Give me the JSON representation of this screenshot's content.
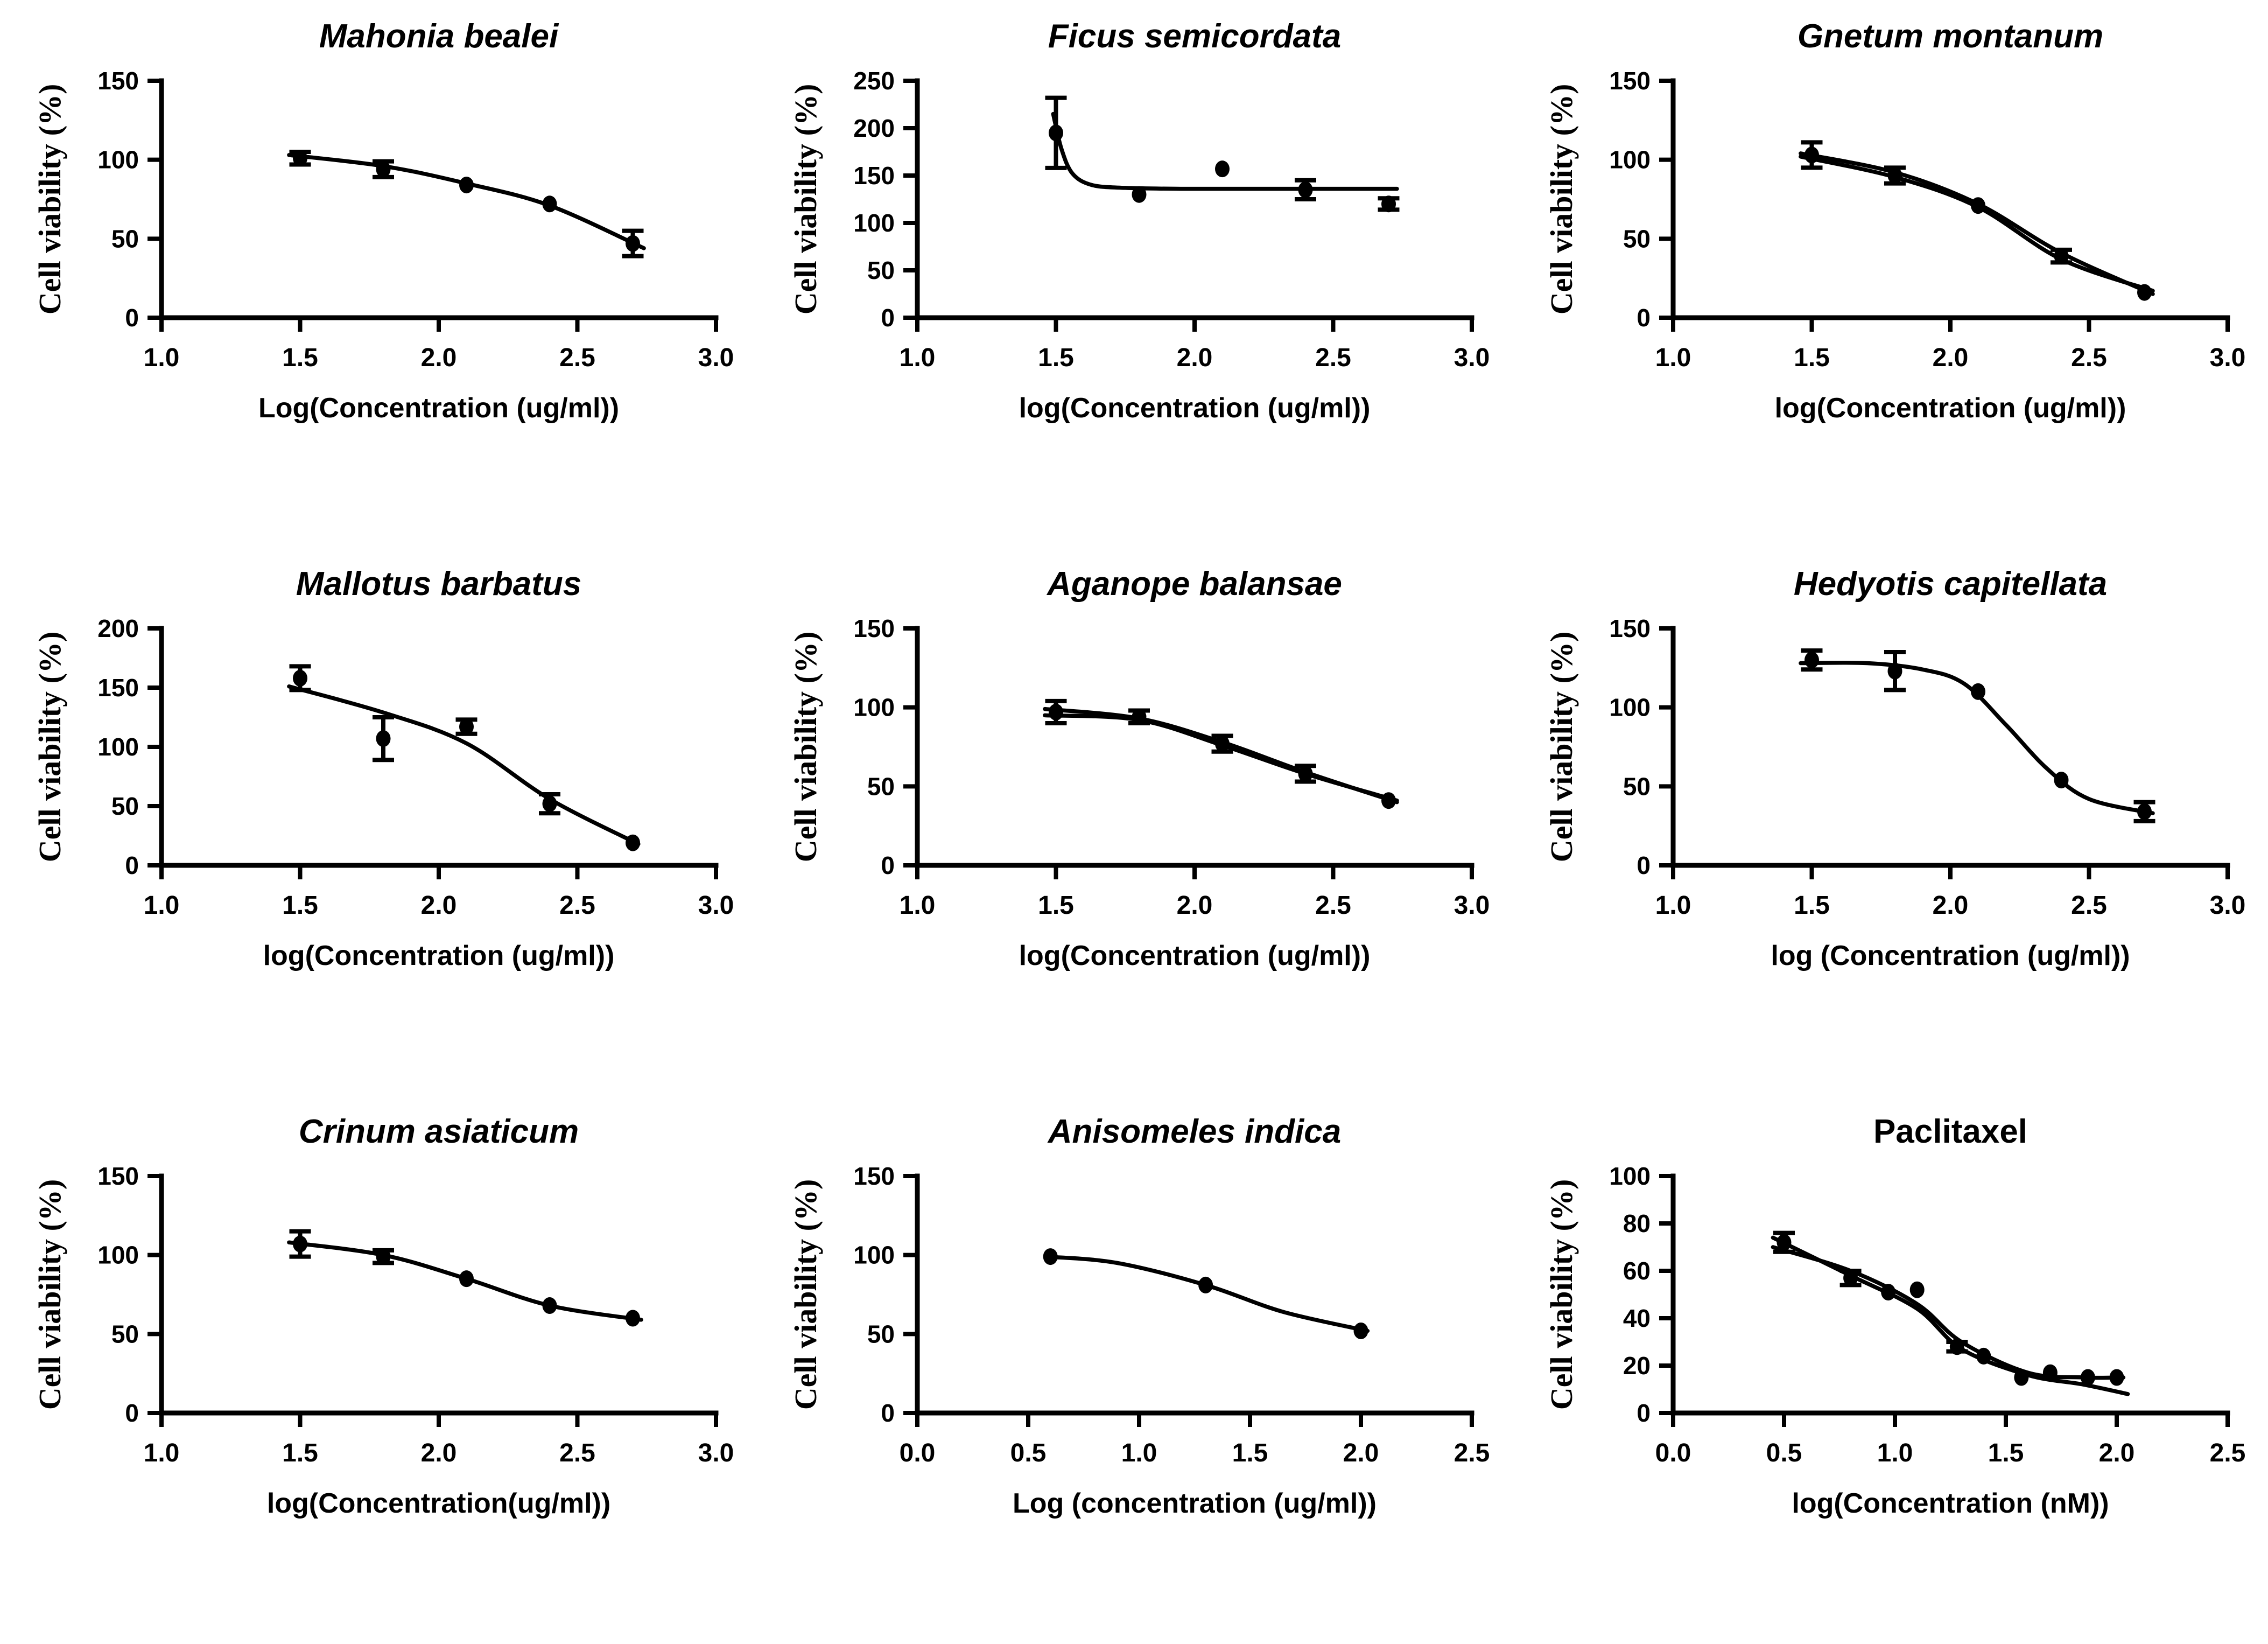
{
  "figure": {
    "background_color": "#ffffff",
    "ink_color": "#000000",
    "ylabel_shared": "Cell viability (%)"
  },
  "chart_data": [
    {
      "type": "scatter-line",
      "title": "Mahonia bealei",
      "title_italic": true,
      "xlabel": "Log(Concentration (ug/ml))",
      "ylabel": "Cell viability (%)",
      "x_range": [
        1.0,
        3.0
      ],
      "y_range": [
        0,
        150
      ],
      "x_ticks": [
        1.0,
        1.5,
        2.0,
        2.5,
        3.0
      ],
      "y_ticks": [
        0,
        50,
        100,
        150
      ],
      "grid": false,
      "points": [
        {
          "x": 1.5,
          "y": 101,
          "err": 4
        },
        {
          "x": 1.8,
          "y": 94,
          "err": 5
        },
        {
          "x": 2.1,
          "y": 84,
          "err": 0
        },
        {
          "x": 2.4,
          "y": 72,
          "err": 0
        },
        {
          "x": 2.7,
          "y": 47,
          "err": 8
        }
      ],
      "curves": [
        [
          [
            1.46,
            103
          ],
          [
            1.8,
            96
          ],
          [
            2.1,
            85
          ],
          [
            2.4,
            71
          ],
          [
            2.74,
            44
          ]
        ]
      ]
    },
    {
      "type": "scatter-line",
      "title": "Ficus semicordata",
      "title_italic": true,
      "xlabel": "log(Concentration (ug/ml))",
      "ylabel": "Cell viability (%)",
      "x_range": [
        1.0,
        3.0
      ],
      "y_range": [
        0,
        250
      ],
      "x_ticks": [
        1.0,
        1.5,
        2.0,
        2.5,
        3.0
      ],
      "y_ticks": [
        0,
        50,
        100,
        150,
        200,
        250
      ],
      "grid": false,
      "points": [
        {
          "x": 1.5,
          "y": 195,
          "err": 37
        },
        {
          "x": 1.8,
          "y": 130,
          "err": 0
        },
        {
          "x": 2.1,
          "y": 157,
          "err": 0
        },
        {
          "x": 2.4,
          "y": 135,
          "err": 10
        },
        {
          "x": 2.7,
          "y": 120,
          "err": 6
        }
      ],
      "curves": [
        [
          [
            1.49,
            215
          ],
          [
            1.52,
            178
          ],
          [
            1.56,
            152
          ],
          [
            1.63,
            140
          ],
          [
            1.75,
            137
          ],
          [
            1.95,
            136
          ],
          [
            2.2,
            136
          ],
          [
            2.45,
            136
          ],
          [
            2.73,
            136
          ]
        ]
      ]
    },
    {
      "type": "scatter-line",
      "title": "Gnetum montanum",
      "title_italic": true,
      "xlabel": "log(Concentration (ug/ml))",
      "ylabel": "Cell viability (%)",
      "x_range": [
        1.0,
        3.0
      ],
      "y_range": [
        0,
        150
      ],
      "x_ticks": [
        1.0,
        1.5,
        2.0,
        2.5,
        3.0
      ],
      "y_ticks": [
        0,
        50,
        100,
        150
      ],
      "grid": false,
      "points": [
        {
          "x": 1.5,
          "y": 103,
          "err": 8
        },
        {
          "x": 1.8,
          "y": 90,
          "err": 5
        },
        {
          "x": 2.1,
          "y": 71,
          "err": 0
        },
        {
          "x": 2.4,
          "y": 39,
          "err": 4
        },
        {
          "x": 2.7,
          "y": 16,
          "err": 0
        }
      ],
      "curves": [
        [
          [
            1.46,
            104
          ],
          [
            1.8,
            92
          ],
          [
            2.1,
            72
          ],
          [
            2.4,
            41
          ],
          [
            2.73,
            15
          ]
        ],
        [
          [
            1.46,
            102
          ],
          [
            1.8,
            89
          ],
          [
            2.1,
            70
          ],
          [
            2.4,
            37
          ],
          [
            2.73,
            17
          ]
        ]
      ]
    },
    {
      "type": "scatter-line",
      "title": "Mallotus barbatus",
      "title_italic": true,
      "xlabel": "log(Concentration (ug/ml))",
      "ylabel": "Cell viability (%)",
      "x_range": [
        1.0,
        3.0
      ],
      "y_range": [
        0,
        200
      ],
      "x_ticks": [
        1.0,
        1.5,
        2.0,
        2.5,
        3.0
      ],
      "y_ticks": [
        0,
        50,
        100,
        150,
        200
      ],
      "grid": false,
      "points": [
        {
          "x": 1.5,
          "y": 158,
          "err": 10
        },
        {
          "x": 1.8,
          "y": 107,
          "err": 18
        },
        {
          "x": 2.1,
          "y": 117,
          "err": 6
        },
        {
          "x": 2.4,
          "y": 52,
          "err": 8
        },
        {
          "x": 2.7,
          "y": 19,
          "err": 0
        }
      ],
      "curves": [
        [
          [
            1.46,
            151
          ],
          [
            1.8,
            129
          ],
          [
            2.1,
            103
          ],
          [
            2.4,
            56
          ],
          [
            2.72,
            18
          ]
        ]
      ]
    },
    {
      "type": "scatter-line",
      "title": "Aganope balansae",
      "title_italic": true,
      "xlabel": "log(Concentration (ug/ml))",
      "ylabel": "Cell viability (%)",
      "x_range": [
        1.0,
        3.0
      ],
      "y_range": [
        0,
        150
      ],
      "x_ticks": [
        1.0,
        1.5,
        2.0,
        2.5,
        3.0
      ],
      "y_ticks": [
        0,
        50,
        100,
        150
      ],
      "grid": false,
      "points": [
        {
          "x": 1.5,
          "y": 97,
          "err": 7
        },
        {
          "x": 1.8,
          "y": 94,
          "err": 4
        },
        {
          "x": 2.1,
          "y": 77,
          "err": 5
        },
        {
          "x": 2.4,
          "y": 58,
          "err": 5
        },
        {
          "x": 2.7,
          "y": 41,
          "err": 0
        }
      ],
      "curves": [
        [
          [
            1.46,
            99
          ],
          [
            1.8,
            93
          ],
          [
            2.1,
            78
          ],
          [
            2.4,
            59
          ],
          [
            2.73,
            40
          ]
        ],
        [
          [
            1.46,
            95
          ],
          [
            1.8,
            92
          ],
          [
            2.1,
            76
          ],
          [
            2.4,
            58
          ],
          [
            2.73,
            41
          ]
        ]
      ]
    },
    {
      "type": "scatter-line",
      "title": "Hedyotis capitellata",
      "title_italic": true,
      "xlabel": "log (Concentration (ug/ml))",
      "ylabel": "Cell viability (%)",
      "x_range": [
        1.0,
        3.0
      ],
      "y_range": [
        0,
        150
      ],
      "x_ticks": [
        1.0,
        1.5,
        2.0,
        2.5,
        3.0
      ],
      "y_ticks": [
        0,
        50,
        100,
        150
      ],
      "grid": false,
      "points": [
        {
          "x": 1.5,
          "y": 130,
          "err": 6
        },
        {
          "x": 1.8,
          "y": 123,
          "err": 12
        },
        {
          "x": 2.1,
          "y": 110,
          "err": 0
        },
        {
          "x": 2.4,
          "y": 54,
          "err": 0
        },
        {
          "x": 2.7,
          "y": 34,
          "err": 6
        }
      ],
      "curves": [
        [
          [
            1.46,
            128
          ],
          [
            1.7,
            128
          ],
          [
            1.9,
            124
          ],
          [
            2.05,
            115
          ],
          [
            2.2,
            89
          ],
          [
            2.35,
            61
          ],
          [
            2.5,
            42
          ],
          [
            2.73,
            33
          ]
        ]
      ]
    },
    {
      "type": "scatter-line",
      "title": "Crinum asiaticum",
      "title_italic": true,
      "xlabel": "log(Concentration(ug/ml))",
      "ylabel": "Cell viability (%)",
      "x_range": [
        1.0,
        3.0
      ],
      "y_range": [
        0,
        150
      ],
      "x_ticks": [
        1.0,
        1.5,
        2.0,
        2.5,
        3.0
      ],
      "y_ticks": [
        0,
        50,
        100,
        150
      ],
      "grid": false,
      "points": [
        {
          "x": 1.5,
          "y": 107,
          "err": 8
        },
        {
          "x": 1.8,
          "y": 99,
          "err": 4
        },
        {
          "x": 2.1,
          "y": 85,
          "err": 0
        },
        {
          "x": 2.4,
          "y": 68,
          "err": 0
        },
        {
          "x": 2.7,
          "y": 60,
          "err": 0
        }
      ],
      "curves": [
        [
          [
            1.46,
            108
          ],
          [
            1.8,
            100
          ],
          [
            2.1,
            85
          ],
          [
            2.4,
            68
          ],
          [
            2.73,
            59
          ]
        ]
      ]
    },
    {
      "type": "scatter-line",
      "title": "Anisomeles indica",
      "title_italic": true,
      "xlabel": "Log (concentration (ug/ml))",
      "ylabel": "Cell viability (%)",
      "x_range": [
        0.0,
        2.5
      ],
      "y_range": [
        0,
        150
      ],
      "x_ticks": [
        0.0,
        0.5,
        1.0,
        1.5,
        2.0,
        2.5
      ],
      "y_ticks": [
        0,
        50,
        100,
        150
      ],
      "grid": false,
      "points": [
        {
          "x": 0.6,
          "y": 99,
          "err": 0
        },
        {
          "x": 1.3,
          "y": 81,
          "err": 0
        },
        {
          "x": 2.0,
          "y": 52,
          "err": 0
        }
      ],
      "curves": [
        [
          [
            0.58,
            99
          ],
          [
            0.9,
            95
          ],
          [
            1.3,
            81
          ],
          [
            1.65,
            64
          ],
          [
            2.03,
            52
          ]
        ]
      ]
    },
    {
      "type": "scatter-line",
      "title": "Paclitaxel",
      "title_italic": false,
      "xlabel": "log(Concentration (nM))",
      "ylabel": "Cell viability (%)",
      "x_range": [
        0.0,
        2.5
      ],
      "y_range": [
        0,
        100
      ],
      "x_ticks": [
        0.0,
        0.5,
        1.0,
        1.5,
        2.0,
        2.5
      ],
      "y_ticks": [
        0,
        20,
        40,
        60,
        80,
        100
      ],
      "grid": false,
      "points": [
        {
          "x": 0.5,
          "y": 72,
          "err": 4
        },
        {
          "x": 0.8,
          "y": 57,
          "err": 3
        },
        {
          "x": 0.97,
          "y": 51,
          "err": 0
        },
        {
          "x": 1.1,
          "y": 52,
          "err": 0
        },
        {
          "x": 1.28,
          "y": 28,
          "err": 2
        },
        {
          "x": 1.4,
          "y": 24,
          "err": 0
        },
        {
          "x": 1.57,
          "y": 15,
          "err": 0
        },
        {
          "x": 1.7,
          "y": 17,
          "err": 0
        },
        {
          "x": 1.87,
          "y": 15,
          "err": 0
        },
        {
          "x": 2.0,
          "y": 15,
          "err": 0
        }
      ],
      "curves": [
        [
          [
            0.45,
            70
          ],
          [
            0.8,
            60
          ],
          [
            1.1,
            46
          ],
          [
            1.3,
            30
          ],
          [
            1.6,
            17
          ],
          [
            1.85,
            15
          ],
          [
            2.03,
            15
          ]
        ],
        [
          [
            0.45,
            74
          ],
          [
            0.8,
            58
          ],
          [
            1.1,
            44
          ],
          [
            1.3,
            27
          ],
          [
            1.6,
            16
          ],
          [
            1.85,
            12
          ],
          [
            2.05,
            8
          ]
        ]
      ]
    }
  ]
}
